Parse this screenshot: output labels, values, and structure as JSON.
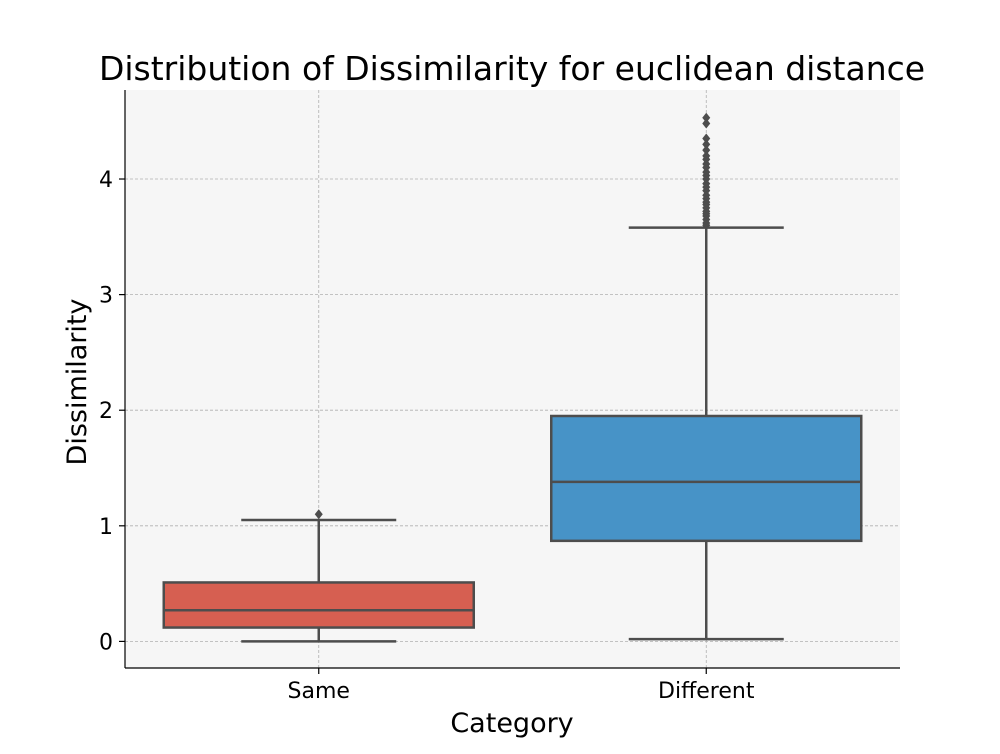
{
  "chart_data": {
    "type": "box",
    "title": "Distribution of Dissimilarity for euclidean distance",
    "xlabel": "Category",
    "ylabel": "Dissimilarity",
    "categories": [
      "Same",
      "Different"
    ],
    "ylim": [
      -0.23,
      4.77
    ],
    "yticks": [
      0,
      1,
      2,
      3,
      4
    ],
    "grid": true,
    "boxes": [
      {
        "category": "Same",
        "color": "#d65f51",
        "whisker_low": 0.0,
        "q1": 0.12,
        "median": 0.27,
        "q3": 0.51,
        "whisker_high": 1.05,
        "outliers": [
          1.1
        ]
      },
      {
        "category": "Different",
        "color": "#4793c7",
        "whisker_low": 0.02,
        "q1": 0.87,
        "median": 1.38,
        "q3": 1.95,
        "whisker_high": 3.58,
        "outliers": [
          3.6,
          3.62,
          3.65,
          3.68,
          3.7,
          3.72,
          3.75,
          3.78,
          3.8,
          3.83,
          3.86,
          3.9,
          3.93,
          3.96,
          4.0,
          4.03,
          4.06,
          4.1,
          4.13,
          4.17,
          4.2,
          4.25,
          4.3,
          4.35,
          4.48,
          4.53
        ]
      }
    ]
  },
  "colors": {
    "plot_background": "#f6f6f6",
    "line": "#4d4d4d",
    "grid": "#b0b0b0"
  }
}
